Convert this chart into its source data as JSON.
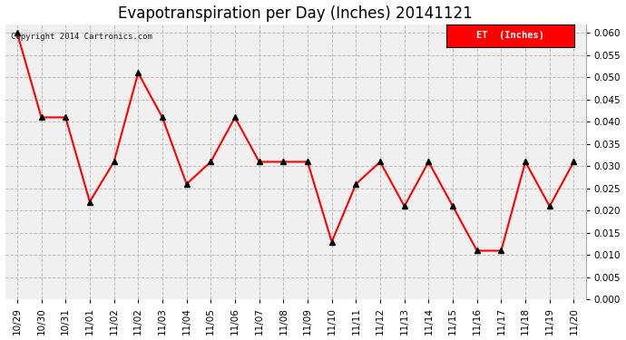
{
  "title": "Evapotranspiration per Day (Inches) 20141121",
  "copyright_text": "Copyright 2014 Cartronics.com",
  "legend_label": "ET  (Inches)",
  "legend_bg": "#ff0000",
  "legend_text_color": "#ffffff",
  "dates": [
    "10/29",
    "10/30",
    "10/31",
    "11/01",
    "11/02",
    "11/02",
    "11/03",
    "11/04",
    "11/05",
    "11/06",
    "11/07",
    "11/08",
    "11/09",
    "11/10",
    "11/11",
    "11/12",
    "11/13",
    "11/14",
    "11/15",
    "11/16",
    "11/17",
    "11/18",
    "11/19",
    "11/20"
  ],
  "values": [
    0.06,
    0.041,
    0.041,
    0.022,
    0.031,
    0.051,
    0.041,
    0.026,
    0.031,
    0.041,
    0.031,
    0.031,
    0.031,
    0.013,
    0.026,
    0.031,
    0.021,
    0.031,
    0.021,
    0.011,
    0.011,
    0.031,
    0.021,
    0.031
  ],
  "line_color": "#ff0000",
  "marker_color": "#000000",
  "marker_style": "^",
  "marker_size": 4,
  "line_width": 1.5,
  "ylim": [
    0.0,
    0.062
  ],
  "yticks": [
    0.0,
    0.005,
    0.01,
    0.015,
    0.02,
    0.025,
    0.03,
    0.035,
    0.04,
    0.045,
    0.05,
    0.055,
    0.06
  ],
  "bg_color": "#f0f0f0",
  "grid_color": "#bbbbbb",
  "title_fontsize": 12,
  "tick_fontsize": 7.5
}
